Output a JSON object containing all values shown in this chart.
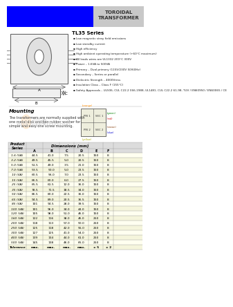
{
  "title": "TOROIDAL\nTRANSFORMER",
  "series_title": "TL35 Series",
  "header_bg": "#0000FF",
  "header_text_bg": "#C8C8C8",
  "page_bg": "#FFFFFF",
  "features": [
    "Low magnetic stray field emissions",
    "Low standby current",
    "High efficiency",
    "High ambient operating temperature (+60°C maximum)",
    "All leads wires are UL1332 200°C 300V",
    "Power – 1.6VA to 500VA",
    "Primary – Dual primary (115V/230V 50/60Hz)",
    "Secondary – Series or parallel",
    "Dielectric Strength – 4000Vrms",
    "Insulation Class – Class F (155°C)",
    "Safety Approvals – UL506, CUL C22.2 066-1988, UL1481, CUL C22.2 61-98, TUV / EN60950 / EN60065 / CE"
  ],
  "mounting_text": "The transformers are normally supplied with\none metal disk and two rubber washer for\nsimple and easy one screw mounting.",
  "table_data": [
    [
      "1.6 (VA)",
      "44.5",
      "41.0",
      "7.5",
      "20.5",
      "150",
      "8"
    ],
    [
      "3.2 (VA)",
      "49.5",
      "45.5",
      "5.0",
      "20.5",
      "150",
      "8"
    ],
    [
      "5.0 (VA)",
      "51.5",
      "49.0",
      "3.5",
      "21.0",
      "150",
      "8"
    ],
    [
      "7.0 (VA)",
      "53.5",
      "50.0",
      "5.0",
      "23.5",
      "150",
      "8"
    ],
    [
      "10 (VA)",
      "60.5",
      "56.0",
      "7.0",
      "23.5",
      "150",
      "8"
    ],
    [
      "15 (VA)",
      "66.5",
      "60.0",
      "6.0",
      "27.5",
      "150",
      "8"
    ],
    [
      "25 (VA)",
      "65.5",
      "61.5",
      "12.0",
      "36.0",
      "150",
      "8"
    ],
    [
      "35 (VA)",
      "78.5",
      "71.5",
      "18.5",
      "34.0",
      "150",
      "8"
    ],
    [
      "50 (VA)",
      "86.5",
      "80.0",
      "22.5",
      "36.0",
      "150",
      "8"
    ],
    [
      "65 (VA)",
      "94.5",
      "89.0",
      "20.5",
      "36.5",
      "150",
      "8"
    ],
    [
      "85 (VA)",
      "101",
      "94.5",
      "28.0",
      "39.5",
      "150",
      "8"
    ],
    [
      "100 (VA)",
      "101",
      "96.0",
      "34.0",
      "44.0",
      "150",
      "8"
    ],
    [
      "120 (VA)",
      "105",
      "98.0",
      "51.0",
      "46.0",
      "150",
      "8"
    ],
    [
      "160 (VA)",
      "122",
      "116",
      "38.0",
      "46.0",
      "250",
      "8"
    ],
    [
      "200 (VA)",
      "118",
      "113",
      "57.0",
      "50.0",
      "250",
      "8"
    ],
    [
      "250 (VA)",
      "125",
      "118",
      "42.0",
      "55.0",
      "250",
      "8"
    ],
    [
      "300 (VA)",
      "127",
      "125",
      "41.0",
      "54.0",
      "250",
      "8"
    ],
    [
      "400 (VA)",
      "139",
      "134",
      "44.0",
      "61.0",
      "250",
      "8"
    ],
    [
      "500 (VA)",
      "145",
      "138",
      "46.0",
      "65.0",
      "250",
      "8"
    ],
    [
      "Tolerance",
      "max.",
      "max.",
      "max.",
      "max.",
      "± 5",
      "± 2"
    ]
  ],
  "table_bg_odd": "#FFFFF0",
  "table_bg_even": "#F5F5DC",
  "table_header_bg": "#DCDCDC",
  "table_border": "#999999"
}
